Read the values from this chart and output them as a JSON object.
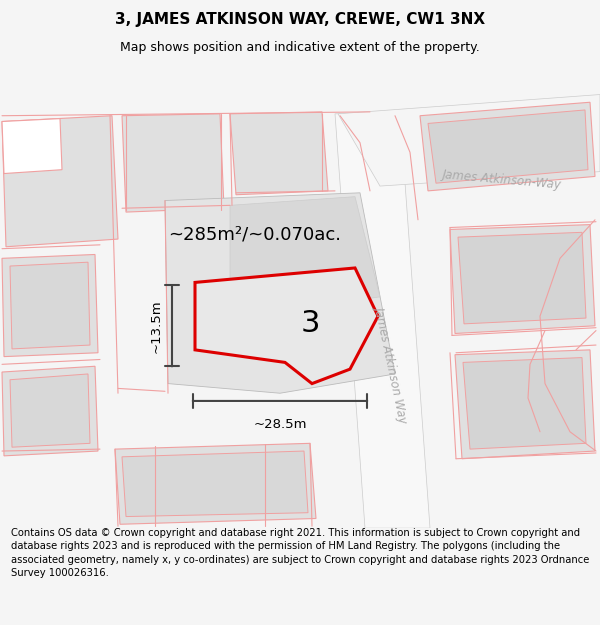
{
  "title": "3, JAMES ATKINSON WAY, CREWE, CW1 3NX",
  "subtitle": "Map shows position and indicative extent of the property.",
  "footer": "Contains OS data © Crown copyright and database right 2021. This information is subject to Crown copyright and database rights 2023 and is reproduced with the permission of HM Land Registry. The polygons (including the associated geometry, namely x, y co-ordinates) are subject to Crown copyright and database rights 2023 Ordnance Survey 100026316.",
  "area_text": "~285m²/~0.070ac.",
  "label_3": "3",
  "dim_width": "~28.5m",
  "dim_height": "~13.5m",
  "road_label_top": "James Atkinson-Way",
  "road_label_right": "James Atkinson Way",
  "bg_color": "#f5f5f5",
  "map_bg": "#ffffff",
  "block_fill": "#e0e0e0",
  "block_edge": "#f0a0a0",
  "road_fill": "#f0f0f0",
  "prop_fill": "#e8e8e8",
  "red_color": "#dd0000",
  "dim_color": "#444444",
  "road_label_color": "#aaaaaa",
  "title_fontsize": 11,
  "subtitle_fontsize": 9,
  "footer_fontsize": 7.2
}
